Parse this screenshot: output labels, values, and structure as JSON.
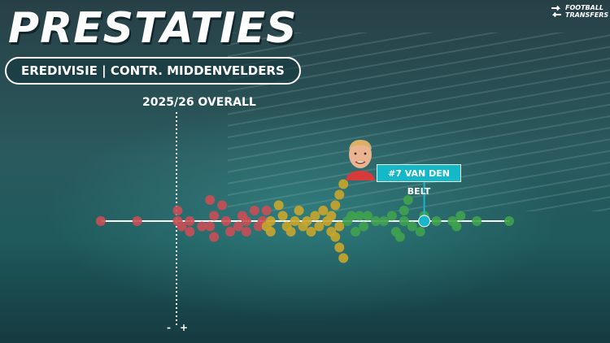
{
  "header": {
    "title": "PRESTATIES",
    "subtitle": "EREDIVISIE | CONTR. MIDDENVELDERS"
  },
  "brand": {
    "logo_line1": "FOOTBALL",
    "logo_line2": "TRANSFERS"
  },
  "chart_data": {
    "type": "scatter",
    "title": "",
    "season_label": "2025/26 OVERALL",
    "xlabel": "",
    "ylabel": "",
    "xlim": [
      -19,
      82
    ],
    "x_axis_labels": {
      "negative": "-",
      "positive": "+"
    },
    "highlight": {
      "name": "#7 VAN DEN BELT",
      "x": 61,
      "y": 0
    },
    "colors": {
      "low": "#c94f55",
      "mid": "#c9a52b",
      "high": "#3fa24e",
      "highlight": "#17b6c8"
    },
    "points": [
      {
        "x": -19,
        "y": 0,
        "tier": "low"
      },
      {
        "x": -10,
        "y": 0,
        "tier": "low"
      },
      {
        "x": 0,
        "y": 1,
        "tier": "low"
      },
      {
        "x": 0,
        "y": 0,
        "tier": "low"
      },
      {
        "x": 1,
        "y": -0.5,
        "tier": "low"
      },
      {
        "x": 3,
        "y": 0,
        "tier": "low"
      },
      {
        "x": 3,
        "y": -1,
        "tier": "low"
      },
      {
        "x": 6,
        "y": -0.5,
        "tier": "low"
      },
      {
        "x": 8,
        "y": 2,
        "tier": "low"
      },
      {
        "x": 9,
        "y": 0.5,
        "tier": "low"
      },
      {
        "x": 9,
        "y": -1.5,
        "tier": "low"
      },
      {
        "x": 8,
        "y": -0.5,
        "tier": "low"
      },
      {
        "x": 11,
        "y": 1.5,
        "tier": "low"
      },
      {
        "x": 12,
        "y": 0,
        "tier": "low"
      },
      {
        "x": 13,
        "y": -1,
        "tier": "low"
      },
      {
        "x": 15,
        "y": -0.5,
        "tier": "low"
      },
      {
        "x": 16,
        "y": 0.5,
        "tier": "low"
      },
      {
        "x": 17,
        "y": 0,
        "tier": "low"
      },
      {
        "x": 17,
        "y": -1,
        "tier": "low"
      },
      {
        "x": 19,
        "y": 1,
        "tier": "low"
      },
      {
        "x": 20,
        "y": -0.5,
        "tier": "low"
      },
      {
        "x": 21,
        "y": 0,
        "tier": "low"
      },
      {
        "x": 22,
        "y": 1,
        "tier": "low"
      },
      {
        "x": 22,
        "y": -0.5,
        "tier": "mid"
      },
      {
        "x": 23,
        "y": 0,
        "tier": "mid"
      },
      {
        "x": 23,
        "y": -1,
        "tier": "mid"
      },
      {
        "x": 25,
        "y": 1.5,
        "tier": "mid"
      },
      {
        "x": 26,
        "y": 0.5,
        "tier": "mid"
      },
      {
        "x": 27,
        "y": -0.5,
        "tier": "mid"
      },
      {
        "x": 28,
        "y": -1,
        "tier": "mid"
      },
      {
        "x": 29,
        "y": 0,
        "tier": "mid"
      },
      {
        "x": 30,
        "y": 1,
        "tier": "mid"
      },
      {
        "x": 31,
        "y": -0.5,
        "tier": "mid"
      },
      {
        "x": 32,
        "y": 0,
        "tier": "mid"
      },
      {
        "x": 33,
        "y": -1,
        "tier": "mid"
      },
      {
        "x": 34,
        "y": 0.5,
        "tier": "mid"
      },
      {
        "x": 35,
        "y": -0.5,
        "tier": "mid"
      },
      {
        "x": 36,
        "y": 1,
        "tier": "mid"
      },
      {
        "x": 37,
        "y": 0,
        "tier": "mid"
      },
      {
        "x": 38,
        "y": 0.5,
        "tier": "mid"
      },
      {
        "x": 38,
        "y": -1,
        "tier": "mid"
      },
      {
        "x": 39,
        "y": 1.5,
        "tier": "mid"
      },
      {
        "x": 39,
        "y": -1.5,
        "tier": "mid"
      },
      {
        "x": 40,
        "y": 2.5,
        "tier": "mid"
      },
      {
        "x": 40,
        "y": -0.5,
        "tier": "mid"
      },
      {
        "x": 40,
        "y": -2.5,
        "tier": "mid"
      },
      {
        "x": 41,
        "y": 3.5,
        "tier": "mid"
      },
      {
        "x": 41,
        "y": -3.5,
        "tier": "mid"
      },
      {
        "x": 42,
        "y": 0,
        "tier": "high"
      },
      {
        "x": 43,
        "y": 0.5,
        "tier": "high"
      },
      {
        "x": 44,
        "y": -1,
        "tier": "high"
      },
      {
        "x": 45,
        "y": 0.5,
        "tier": "high"
      },
      {
        "x": 46,
        "y": -0.5,
        "tier": "high"
      },
      {
        "x": 47,
        "y": 0.5,
        "tier": "high"
      },
      {
        "x": 49,
        "y": 0,
        "tier": "high"
      },
      {
        "x": 51,
        "y": 0,
        "tier": "high"
      },
      {
        "x": 53,
        "y": 0.5,
        "tier": "high"
      },
      {
        "x": 54,
        "y": -1,
        "tier": "high"
      },
      {
        "x": 55,
        "y": -1.5,
        "tier": "high"
      },
      {
        "x": 56,
        "y": 0,
        "tier": "high"
      },
      {
        "x": 56,
        "y": 1,
        "tier": "high"
      },
      {
        "x": 57,
        "y": 2,
        "tier": "high"
      },
      {
        "x": 58,
        "y": -0.5,
        "tier": "high"
      },
      {
        "x": 60,
        "y": -1,
        "tier": "high"
      },
      {
        "x": 61,
        "y": 0.5,
        "tier": "high"
      },
      {
        "x": 64,
        "y": 0,
        "tier": "high"
      },
      {
        "x": 68,
        "y": 0,
        "tier": "high"
      },
      {
        "x": 69,
        "y": -0.5,
        "tier": "high"
      },
      {
        "x": 70,
        "y": 0.5,
        "tier": "high"
      },
      {
        "x": 74,
        "y": 0,
        "tier": "high"
      },
      {
        "x": 82,
        "y": 0,
        "tier": "high"
      }
    ]
  }
}
